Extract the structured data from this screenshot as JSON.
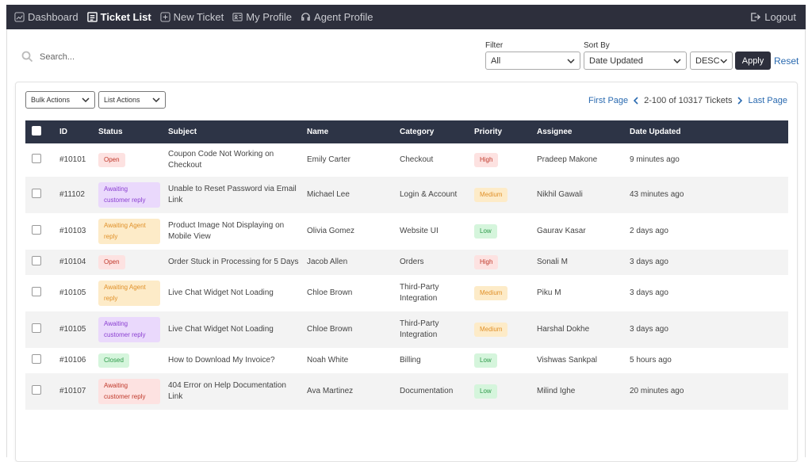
{
  "nav": {
    "items": [
      "Dashboard",
      "Ticket List",
      "New Ticket",
      "My Profile",
      "Agent Profile"
    ],
    "logout": "Logout"
  },
  "search": {
    "placeholder": "Search..."
  },
  "filter": {
    "label": "Filter",
    "value": "All"
  },
  "sort": {
    "label": "Sort By",
    "value": "Date Updated",
    "order": "DESC"
  },
  "buttons": {
    "apply": "Apply",
    "reset": "Reset",
    "bulk": "Bulk Actions",
    "list": "List Actions"
  },
  "pagination": {
    "first": "First Page",
    "summary": "2-100 of 10317 Tickets",
    "last": "Last Page"
  },
  "table": {
    "headers": [
      "ID",
      "Status",
      "Subject",
      "Name",
      "Category",
      "Priority",
      "Assignee",
      "Date Updated"
    ],
    "rows": [
      {
        "id": "#10101",
        "status": "Open",
        "status_color": "#fde2e1",
        "subject": "Coupon Code Not Working on Checkout",
        "name": "Emily Carter",
        "category": "Checkout",
        "priority": "High",
        "priority_color": "#fde2e1",
        "assignee": "Pradeep Makone",
        "updated": "9 minutes ago"
      },
      {
        "id": "#11102",
        "status": "Awaiting customer reply",
        "status_color": "#ead9fc",
        "subject": "Unable to Reset Password via Email Link",
        "name": "Michael Lee",
        "category": "Login & Account",
        "priority": "Medium",
        "priority_color": "#fdebc8",
        "assignee": "Nikhil Gawali",
        "updated": "43 minutes ago"
      },
      {
        "id": "#10103",
        "status": "Awaiting Agent reply",
        "status_color": "#fdebc8",
        "subject": "Product Image Not Displaying on Mobile View",
        "name": "Olivia Gomez",
        "category": "Website UI",
        "priority": "Low",
        "priority_color": "#d5f5dc",
        "assignee": "Gaurav Kasar",
        "updated": "2 days ago"
      },
      {
        "id": "#10104",
        "status": "Open",
        "status_color": "#fde2e1",
        "subject": "Order Stuck in Processing for 5 Days",
        "name": "Jacob Allen",
        "category": "Orders",
        "priority": "High",
        "priority_color": "#fde2e1",
        "assignee": "Sonali M",
        "updated": "3 days ago"
      },
      {
        "id": "#10105",
        "status": "Awaiting Agent reply",
        "status_color": "#fdebc8",
        "subject": "Live Chat Widget Not Loading",
        "name": "Chloe Brown",
        "category": "Third-Party Integration",
        "priority": "Medium",
        "priority_color": "#fdebc8",
        "assignee": "Piku M",
        "updated": "3 days ago"
      },
      {
        "id": "#10105",
        "status": "Awaiting customer reply",
        "status_color": "#ead9fc",
        "subject": "Live Chat Widget Not Loading",
        "name": "Chloe Brown",
        "category": "Third-Party Integration",
        "priority": "Medium",
        "priority_color": "#fdebc8",
        "assignee": "Harshal Dokhe",
        "updated": "3 days ago"
      },
      {
        "id": "#10106",
        "status": "Closed",
        "status_color": "#d5f5dc",
        "subject": "How to Download My Invoice?",
        "name": "Noah White",
        "category": "Billing",
        "priority": "Low",
        "priority_color": "#d5f5dc",
        "assignee": "Vishwas Sankpal",
        "updated": "5 hours ago"
      },
      {
        "id": "#10107",
        "status": "Awaiting customer reply",
        "status_color": "#fde2e1",
        "subject": "404 Error on Help Documentation Link",
        "name": "Ava Martinez",
        "category": "Documentation",
        "priority": "Low",
        "priority_color": "#d5f5dc",
        "assignee": "Milind Ighe",
        "updated": "20 minutes ago"
      }
    ]
  }
}
